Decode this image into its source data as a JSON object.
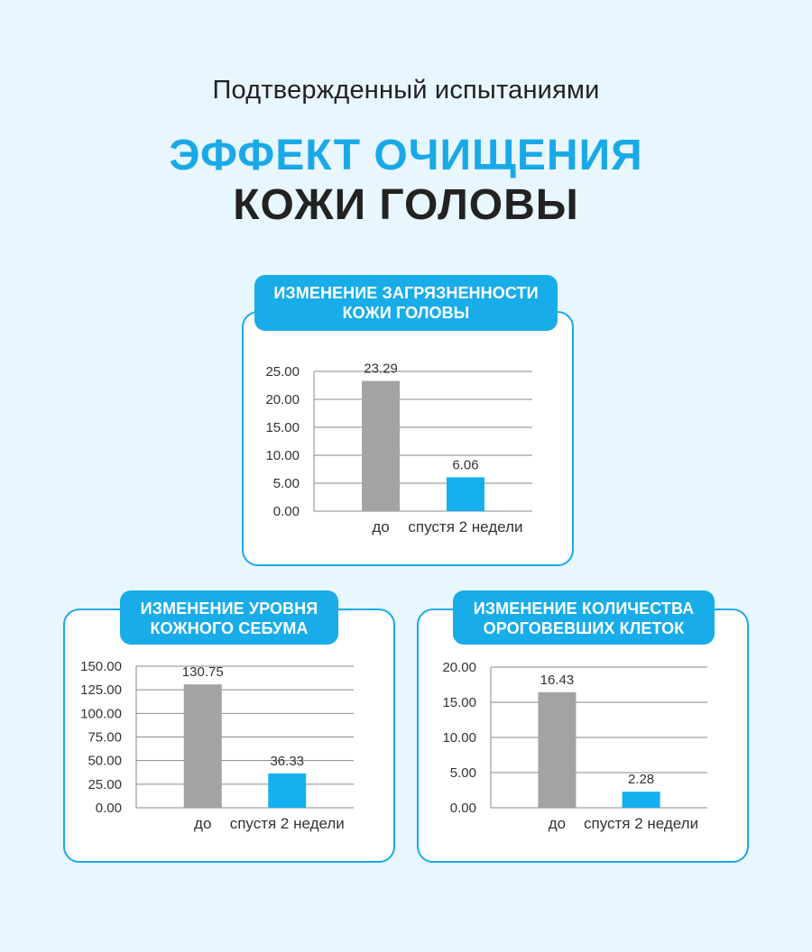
{
  "header": {
    "subtitle": "Подтвержденный испытаниями",
    "title_line1": "ЭФФЕКТ ОЧИЩЕНИЯ",
    "title_line2": "КОЖИ ГОЛОВЫ"
  },
  "colors": {
    "accent": "#1aa9e8",
    "bar_before": "#a3a3a3",
    "bar_after": "#15b0ee"
  },
  "panels": [
    {
      "title_line1": "ИЗМЕНЕНИЕ ЗАГРЯЗНЕННОСТИ",
      "title_line2": "КОЖИ ГОЛОВЫ"
    },
    {
      "title_line1": "ИЗМЕНЕНИЕ УРОВНЯ",
      "title_line2": "КОЖНОГО СЕБУМА"
    },
    {
      "title_line1": "ИЗМЕНЕНИЕ КОЛИЧЕСТВА",
      "title_line2": "ОРОГОВЕВШИХ КЛЕТОК"
    }
  ],
  "chart_data": [
    {
      "type": "bar",
      "title": "ИЗМЕНЕНИЕ ЗАГРЯЗНЕННОСТИ КОЖИ ГОЛОВЫ",
      "categories": [
        "до",
        "спустя 2 недели"
      ],
      "values": [
        23.29,
        6.06
      ],
      "data_labels": [
        "23.29",
        "6.06"
      ],
      "ylim": [
        0,
        25
      ],
      "yticks": [
        "0.00",
        "5.00",
        "10.00",
        "15.00",
        "20.00",
        "25.00"
      ],
      "grid": true
    },
    {
      "type": "bar",
      "title": "ИЗМЕНЕНИЕ УРОВНЯ КОЖНОГО СЕБУМА",
      "categories": [
        "до",
        "спустя 2 недели"
      ],
      "values": [
        130.75,
        36.33
      ],
      "data_labels": [
        "130.75",
        "36.33"
      ],
      "ylim": [
        0,
        150
      ],
      "yticks": [
        "0.00",
        "25.00",
        "50.00",
        "75.00",
        "100.00",
        "125.00",
        "150.00"
      ],
      "grid": true
    },
    {
      "type": "bar",
      "title": "ИЗМЕНЕНИЕ КОЛИЧЕСТВА ОРОГОВЕВШИХ КЛЕТОК",
      "categories": [
        "до",
        "спустя 2 недели"
      ],
      "values": [
        16.43,
        2.28
      ],
      "data_labels": [
        "16.43",
        "2.28"
      ],
      "ylim": [
        0,
        20
      ],
      "yticks": [
        "0.00",
        "5.00",
        "10.00",
        "15.00",
        "20.00"
      ],
      "grid": true
    }
  ]
}
